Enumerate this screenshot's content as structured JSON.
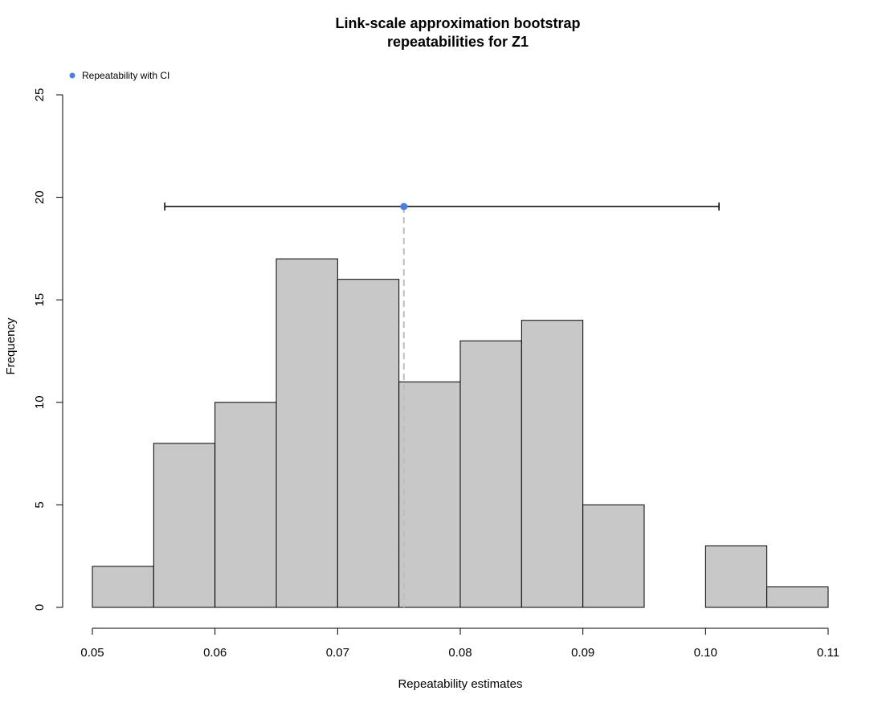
{
  "chart_data": {
    "type": "bar",
    "title_lines": [
      "Link-scale approximation bootstrap",
      "repeatabilities for Z1"
    ],
    "xlabel": "Repeatability estimates",
    "ylabel": "Frequency",
    "bins": [
      {
        "x0": 0.05,
        "x1": 0.055,
        "count": 2
      },
      {
        "x0": 0.055,
        "x1": 0.06,
        "count": 8
      },
      {
        "x0": 0.06,
        "x1": 0.065,
        "count": 10
      },
      {
        "x0": 0.065,
        "x1": 0.07,
        "count": 17
      },
      {
        "x0": 0.07,
        "x1": 0.075,
        "count": 16
      },
      {
        "x0": 0.075,
        "x1": 0.08,
        "count": 11
      },
      {
        "x0": 0.08,
        "x1": 0.085,
        "count": 13
      },
      {
        "x0": 0.085,
        "x1": 0.09,
        "count": 14
      },
      {
        "x0": 0.09,
        "x1": 0.095,
        "count": 5
      },
      {
        "x0": 0.095,
        "x1": 0.1,
        "count": 0
      },
      {
        "x0": 0.1,
        "x1": 0.105,
        "count": 3
      },
      {
        "x0": 0.105,
        "x1": 0.11,
        "count": 1
      }
    ],
    "xlim": [
      0.05,
      0.11
    ],
    "ylim": [
      0,
      25
    ],
    "x_ticks": [
      0.05,
      0.06,
      0.07,
      0.08,
      0.09,
      0.1,
      0.11
    ],
    "x_tick_labels": [
      "0.05",
      "0.06",
      "0.07",
      "0.08",
      "0.09",
      "0.10",
      "0.11"
    ],
    "y_ticks": [
      0,
      5,
      10,
      15,
      20,
      25
    ],
    "y_tick_labels": [
      "0",
      "5",
      "10",
      "15",
      "20",
      "25"
    ],
    "point_estimate": {
      "x": 0.0754,
      "y": 19.55
    },
    "ci": {
      "lower": 0.0559,
      "upper": 0.1011,
      "y": 19.55
    },
    "legend": {
      "label": "Repeatability with CI",
      "placement": "top-left"
    },
    "colors": {
      "bar_fill": "#c8c8c8",
      "bar_stroke": "#000000",
      "point": "#4a7fe0",
      "dashed_line": "#bebebe",
      "ci_line": "#000000"
    },
    "grid": false
  }
}
